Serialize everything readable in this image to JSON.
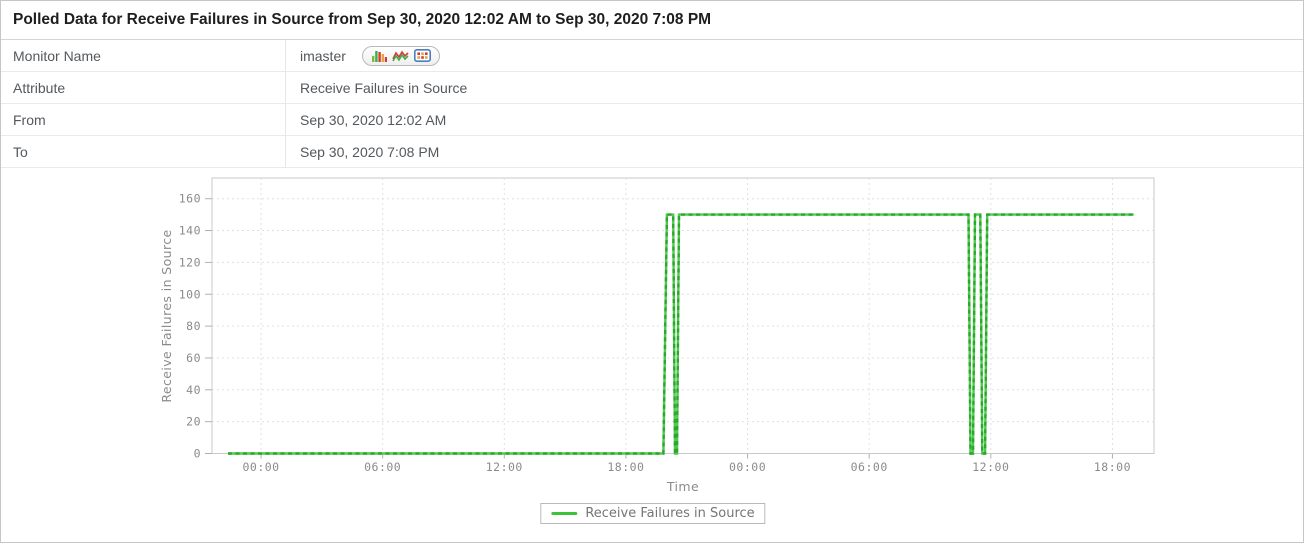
{
  "header": {
    "title": "Polled Data for Receive Failures in Source from Sep 30, 2020 12:02 AM to Sep 30, 2020 7:08 PM"
  },
  "info_table": {
    "rows": [
      {
        "label": "Monitor Name",
        "value": "imaster"
      },
      {
        "label": "Attribute",
        "value": "Receive Failures in Source"
      },
      {
        "label": "From",
        "value": "Sep 30, 2020 12:02 AM"
      },
      {
        "label": "To",
        "value": "Sep 30, 2020 7:08 PM"
      }
    ],
    "monitor_view_icons": [
      "bar-chart-icon",
      "line-chart-icon",
      "table-view-icon"
    ]
  },
  "chart_data": {
    "type": "line",
    "xlabel": "Time",
    "ylabel": "Receive Failures in Source",
    "x_tick_hours": [
      0,
      6,
      12,
      18,
      24,
      30,
      36,
      42
    ],
    "x_tick_labels": [
      "00:00",
      "06:00",
      "12:00",
      "18:00",
      "00:00",
      "06:00",
      "12:00",
      "18:00"
    ],
    "x_range_hours": [
      -2.42,
      44.05
    ],
    "y_ticks": [
      0,
      20,
      40,
      60,
      80,
      100,
      120,
      140,
      160
    ],
    "ylim": [
      0,
      173
    ],
    "grid": "dotted",
    "legend_position": "bottom-center",
    "colors": {
      "line_light": "#4fc84f",
      "line_dash": "#2aa82a",
      "grid": "#e0e0e0",
      "axis_border": "#c9c9c9",
      "tick_mark": "#b0b0b0"
    },
    "series": [
      {
        "name": "Receive Failures in Source",
        "points": [
          [
            -1.63,
            0
          ],
          [
            19.85,
            0
          ],
          [
            20.02,
            150
          ],
          [
            20.33,
            150
          ],
          [
            20.42,
            0
          ],
          [
            20.52,
            0
          ],
          [
            20.62,
            150
          ],
          [
            34.9,
            150
          ],
          [
            35.0,
            0
          ],
          [
            35.12,
            0
          ],
          [
            35.22,
            150
          ],
          [
            35.48,
            150
          ],
          [
            35.58,
            0
          ],
          [
            35.72,
            0
          ],
          [
            35.82,
            150
          ],
          [
            43.05,
            150
          ]
        ]
      }
    ]
  },
  "legend": {
    "label": "Receive Failures in Source",
    "swatch_color": "#3bc43b"
  }
}
